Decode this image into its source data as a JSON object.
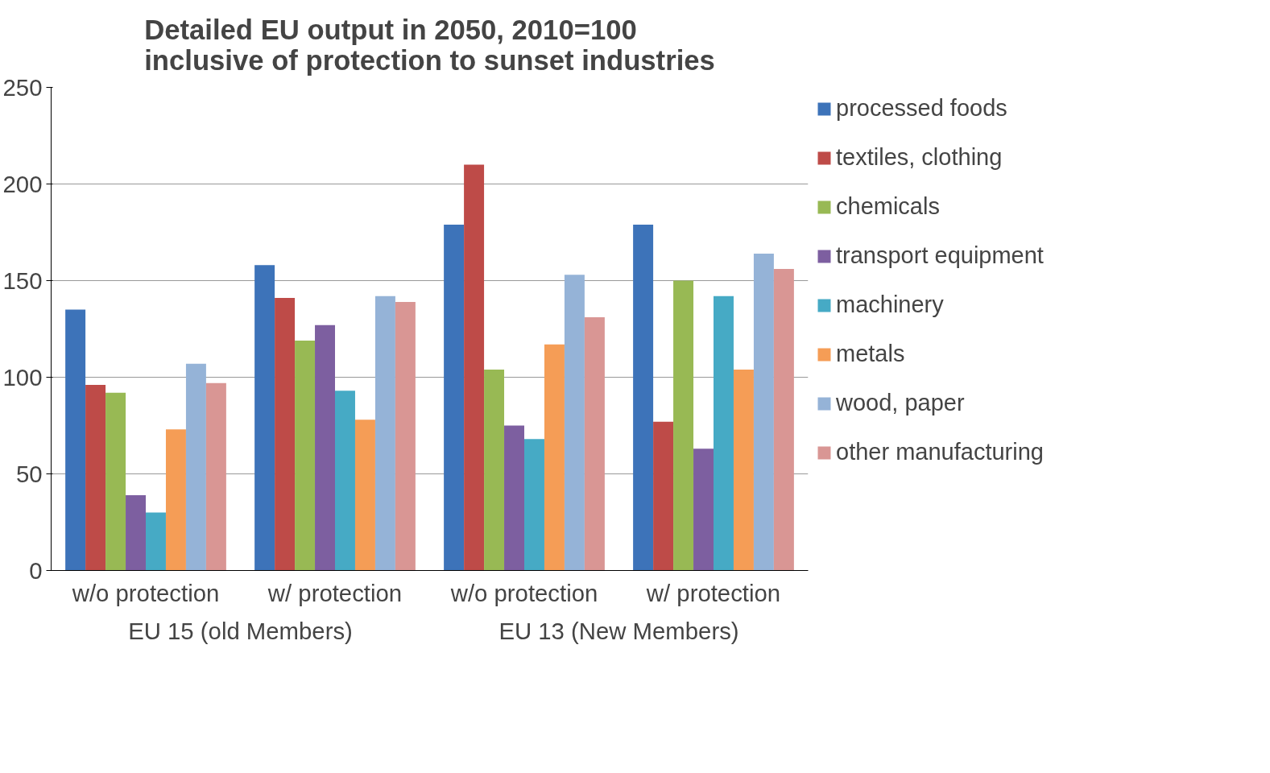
{
  "chart_data": {
    "type": "bar",
    "title": "Detailed EU output in 2050, 2010=100\ninclusive of protection to sunset industries",
    "categories": [
      "w/o protection",
      "w/ protection",
      "w/o protection",
      "w/ protection"
    ],
    "series": [
      {
        "name": "processed foods",
        "color": "#3d73b9",
        "values": [
          135,
          158,
          179,
          179
        ]
      },
      {
        "name": "textiles, clothing",
        "color": "#be4b48",
        "values": [
          96,
          141,
          210,
          77
        ]
      },
      {
        "name": "chemicals",
        "color": "#98b954",
        "values": [
          92,
          119,
          104,
          150
        ]
      },
      {
        "name": "transport equipment",
        "color": "#7d5fa0",
        "values": [
          39,
          127,
          75,
          63
        ]
      },
      {
        "name": "machinery",
        "color": "#46aac5",
        "values": [
          30,
          93,
          68,
          142
        ]
      },
      {
        "name": "metals",
        "color": "#f59d56",
        "values": [
          73,
          78,
          117,
          104
        ]
      },
      {
        "name": "wood, paper",
        "color": "#95b3d7",
        "values": [
          107,
          142,
          153,
          164
        ]
      },
      {
        "name": "other manufacturing",
        "color": "#d99694",
        "values": [
          97,
          139,
          131,
          156
        ]
      }
    ],
    "annotations": [
      "EU 15 (old Members)",
      "EU 13 (New Members)"
    ],
    "ylim": [
      0,
      250
    ],
    "yticks": [
      0,
      50,
      100,
      150,
      200,
      250
    ],
    "grid": "y",
    "legend": "right"
  }
}
